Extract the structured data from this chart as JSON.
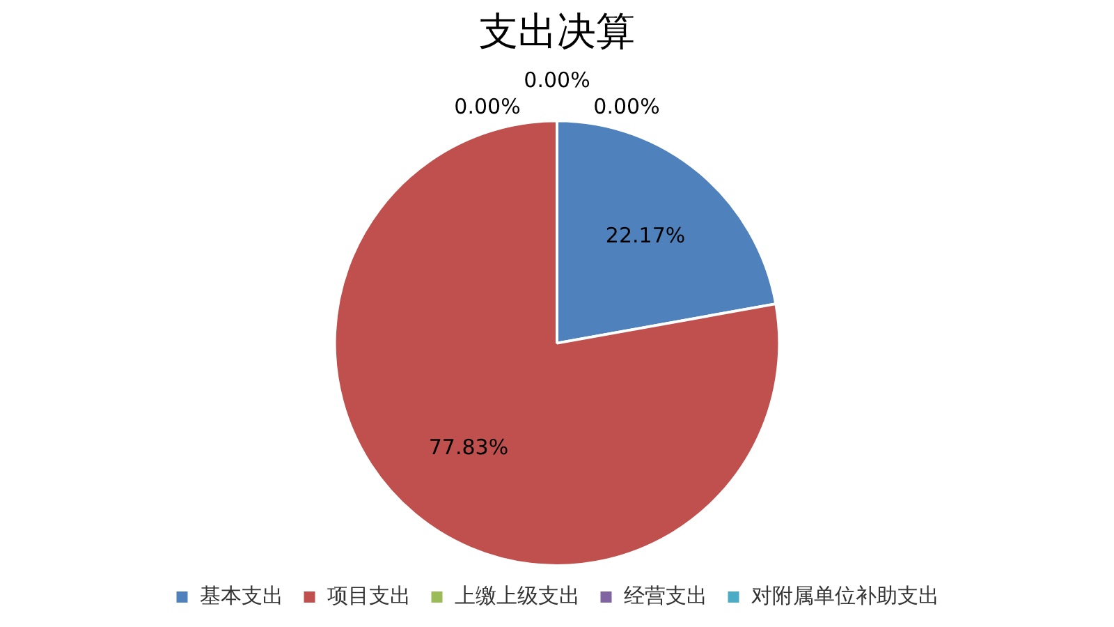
{
  "chart_data": {
    "type": "pie",
    "title": "支出决算",
    "categories": [
      "基本支出",
      "项目支出",
      "上缴上级支出",
      "经营支出",
      "对附属单位补助支出"
    ],
    "values": [
      22.17,
      77.83,
      0,
      0,
      0
    ],
    "colors": [
      "#4f81bd",
      "#c0504d",
      "#9bbb59",
      "#8064a2",
      "#4bacc6"
    ],
    "value_labels": [
      "22.17%",
      "77.83%",
      "0.00%",
      "0.00%",
      "0.00%"
    ],
    "legend": "bottom"
  }
}
